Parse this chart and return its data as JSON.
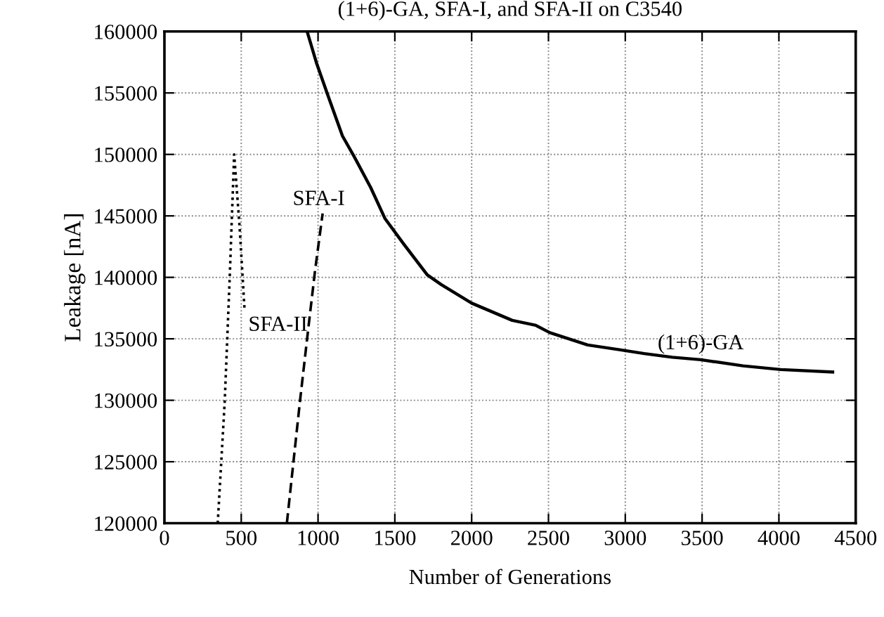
{
  "chart_data": {
    "type": "line",
    "title": "(1+6)-GA, SFA-I, and SFA-II on C3540",
    "xlabel": "Number of Generations",
    "ylabel": "Leakage [nA]",
    "xlim": [
      0,
      4500
    ],
    "xticks": [
      0,
      500,
      1000,
      1500,
      2000,
      2500,
      3000,
      3500,
      4000,
      4500
    ],
    "ylim": [
      120000,
      160000
    ],
    "yticks": [
      120000,
      125000,
      130000,
      135000,
      140000,
      145000,
      150000,
      155000,
      160000
    ],
    "grid": true,
    "legend": false,
    "series": [
      {
        "name": "(1+6)-GA",
        "color": "#000000",
        "line_style": "solid",
        "x": [
          929,
          991,
          1067,
          1159,
          1236,
          1343,
          1435,
          1558,
          1711,
          1803,
          2000,
          2264,
          2417,
          2509,
          2755,
          2969,
          3123,
          3307,
          3491,
          3767,
          4012,
          4350
        ],
        "values": [
          160000,
          157400,
          154700,
          151500,
          149800,
          147300,
          144800,
          142700,
          140200,
          139400,
          137900,
          136500,
          136100,
          135500,
          134500,
          134100,
          133800,
          133500,
          133300,
          132800,
          132500,
          132300
        ]
      },
      {
        "name": "SFA-I",
        "color": "#000000",
        "line_style": "dashed",
        "x": [
          797,
          883,
          938,
          981,
          1030
        ],
        "values": [
          120000,
          130000,
          136000,
          140600,
          145200
        ]
      },
      {
        "name": "SFA-II",
        "color": "#000000",
        "line_style": "dotted",
        "x": [
          347,
          393,
          425,
          454,
          490,
          521
        ],
        "values": [
          120000,
          130000,
          140000,
          150000,
          144000,
          137500
        ]
      }
    ]
  }
}
